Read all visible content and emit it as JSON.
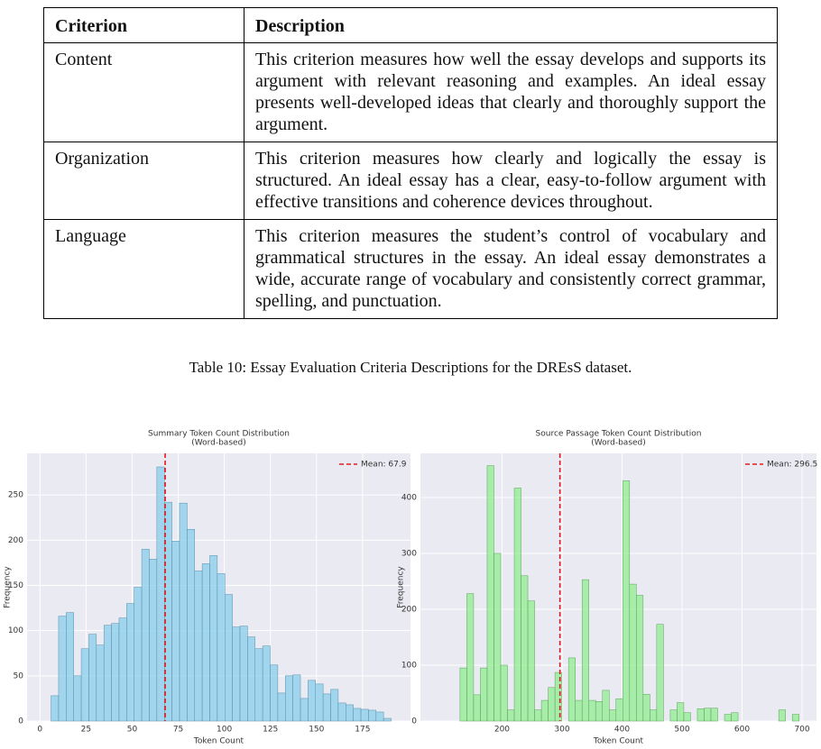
{
  "table": {
    "header": [
      "Criterion",
      "Description"
    ],
    "rows": [
      [
        "Content",
        "This criterion measures how well the essay develops and supports its argument with relevant reasoning and examples. An ideal essay presents well-developed ideas that clearly and thoroughly support the argument."
      ],
      [
        "Organization",
        "This criterion measures how clearly and logically the essay is structured. An ideal essay has a clear, easy-to-follow argument with effective transitions and coherence devices throughout."
      ],
      [
        "Language",
        "This criterion measures the student’s control of vocabulary and grammatical structures in the essay. An ideal essay demonstrates a wide, accurate range of vocabulary and consistently correct grammar, spelling, and punctuation."
      ]
    ],
    "caption": "Table 10: Essay Evaluation Criteria Descriptions for the DREsS dataset."
  },
  "chart_data": [
    {
      "type": "histogram",
      "title": [
        "Summary Token Count Distribution",
        "(Word-based)"
      ],
      "x_label": "Token Count",
      "y_label": "Frequency",
      "color": "#87ceeb",
      "edge_color": "#5a8fa8",
      "bins": [
        6,
        10.1,
        14.2,
        18.3,
        22.4,
        26.5,
        30.6,
        34.7,
        38.8,
        42.9,
        47,
        51.1,
        55.2,
        59.3,
        63.4,
        67.5,
        71.6,
        75.7,
        79.8,
        83.9,
        88,
        92.1,
        96.2,
        100.3,
        104.4,
        108.5,
        112.6,
        116.7,
        120.8,
        124.9,
        129,
        133.1,
        137.2,
        141.3,
        145.4,
        149.5,
        153.6,
        157.7,
        161.8,
        165.9,
        170,
        174.1,
        178.2,
        182.3,
        186.4,
        190.5
      ],
      "values": [
        28,
        116,
        120,
        50,
        80,
        96,
        84,
        106,
        108,
        114,
        130,
        148,
        190,
        179,
        281,
        242,
        199,
        241,
        212,
        166,
        174,
        183,
        163,
        140,
        104,
        105,
        93,
        80,
        83,
        62,
        31,
        50,
        51,
        25,
        45,
        41,
        30,
        35,
        20,
        18,
        14,
        13,
        12,
        10,
        3
      ],
      "mean_line": {
        "name": "Mean: 67.9",
        "value": 67.9,
        "color": "#e31a1c"
      },
      "xlim": [
        -7,
        201
      ],
      "ylim": [
        0,
        296
      ],
      "xticks": [
        0,
        25,
        50,
        75,
        100,
        125,
        150,
        175
      ],
      "yticks": [
        0,
        50,
        100,
        150,
        200,
        250
      ],
      "grid": true
    },
    {
      "type": "histogram",
      "title": [
        "Source Passage Token Count Distribution",
        "(Word-based)"
      ],
      "x_label": "Token Count",
      "y_label": "Frequency",
      "color": "#90ee90",
      "edge_color": "#5aa05a",
      "bins": [
        130,
        141.3,
        152.6,
        163.9,
        175.2,
        186.5,
        197.8,
        209.1,
        220.4,
        231.7,
        243,
        254.3,
        265.6,
        276.9,
        288.2,
        299.5,
        310.8,
        322.1,
        333.4,
        344.7,
        356,
        367.3,
        378.6,
        389.9,
        401.2,
        412.5,
        423.8,
        435.1,
        446.4,
        457.7,
        469,
        480.3,
        491.6,
        502.9,
        514.2,
        525.5,
        536.8,
        548.1,
        559.4,
        570.7,
        582,
        593.3,
        604.6,
        615.9,
        627.2,
        638.5,
        649.8,
        661.1,
        672.4,
        683.7,
        695
      ],
      "values": [
        95,
        228,
        47,
        95,
        457,
        300,
        100,
        20,
        417,
        260,
        215,
        20,
        37,
        60,
        87,
        0,
        113,
        37,
        253,
        37,
        35,
        55,
        20,
        40,
        430,
        245,
        225,
        48,
        20,
        173,
        0,
        20,
        33,
        15,
        0,
        22,
        23,
        23,
        0,
        12,
        15,
        0,
        0,
        0,
        0,
        0,
        0,
        20,
        0,
        12
      ],
      "mean_line": {
        "name": "Mean: 296.5",
        "value": 296.5,
        "color": "#e31a1c"
      },
      "xlim": [
        64,
        724
      ],
      "ylim": [
        0,
        479
      ],
      "xticks": [
        200,
        300,
        400,
        500,
        600,
        700
      ],
      "yticks": [
        0,
        100,
        200,
        300,
        400
      ],
      "grid": true
    }
  ]
}
